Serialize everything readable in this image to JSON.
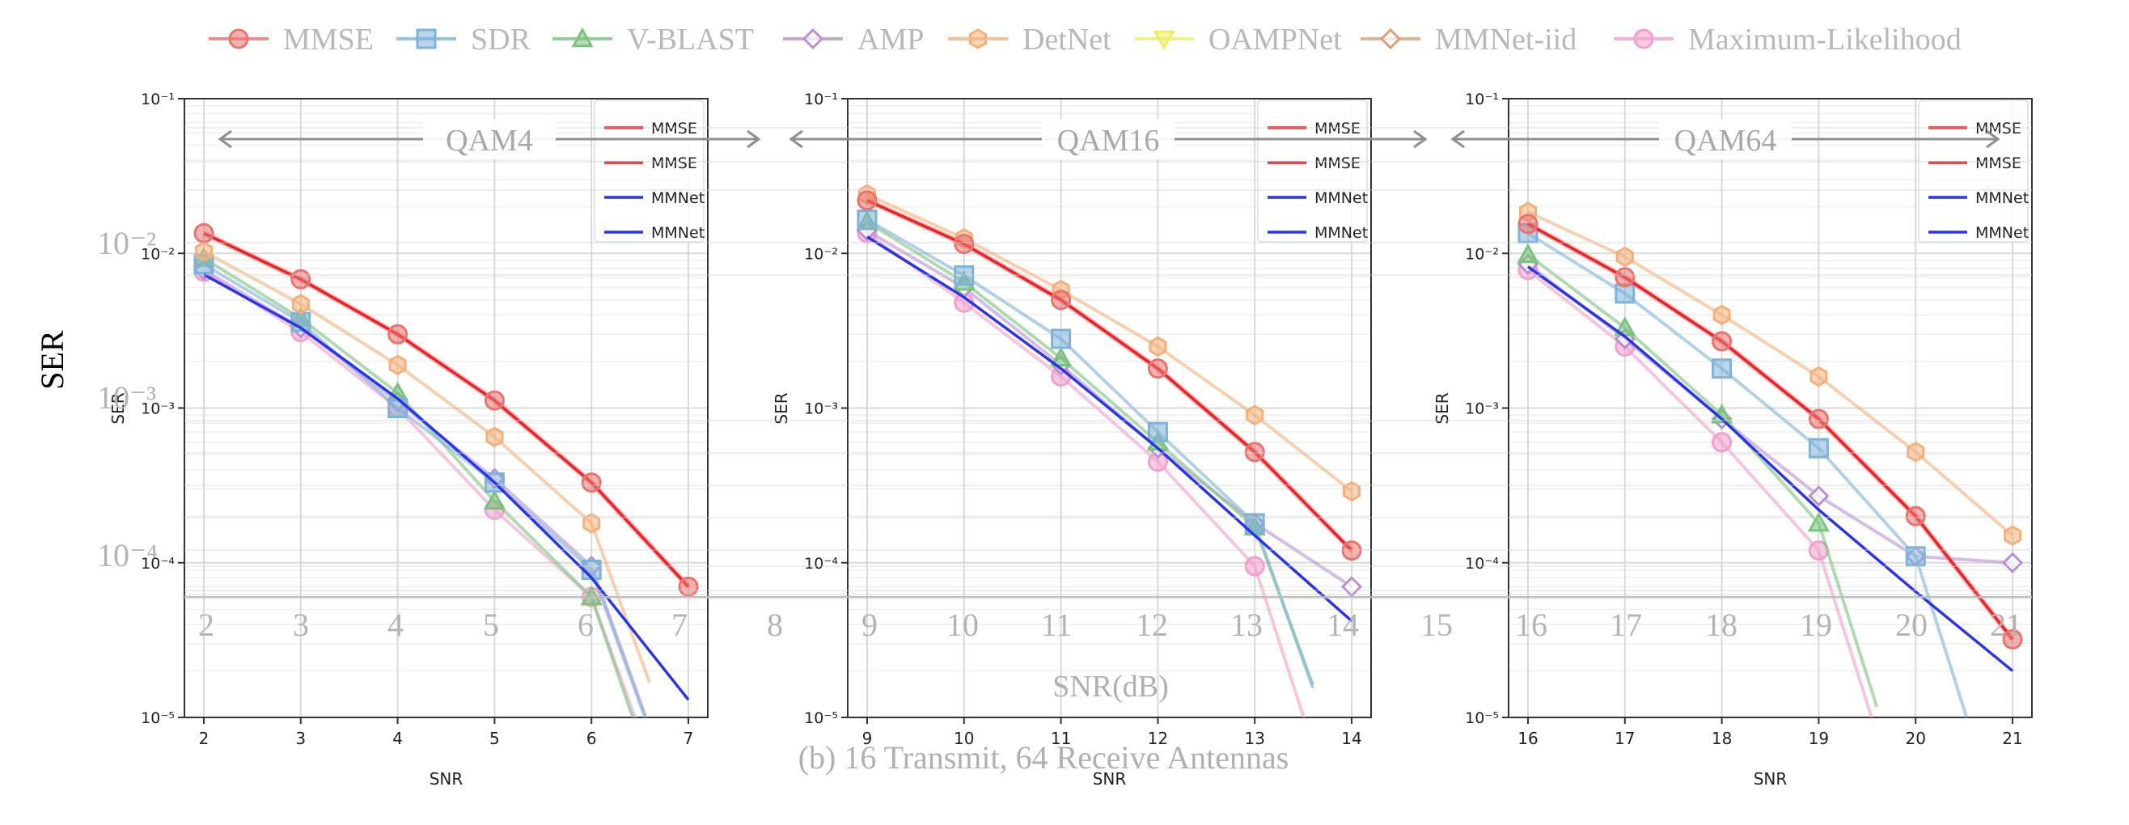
{
  "figure": {
    "top_legend": [
      {
        "label": "MMSE",
        "color": "#e8746f",
        "marker": "circle"
      },
      {
        "label": "SDR",
        "color": "#7fb2d8",
        "marker": "square"
      },
      {
        "label": "V-BLAST",
        "color": "#78c47a",
        "marker": "triangle"
      },
      {
        "label": "AMP",
        "color": "#b98fd3",
        "marker": "diamond"
      },
      {
        "label": "DetNet",
        "color": "#f4b07a",
        "marker": "hexagon"
      },
      {
        "label": "OAMPNet",
        "color": "#eeee66",
        "marker": "triangle-down"
      },
      {
        "label": "MMNet-iid",
        "color": "#d9a07e",
        "marker": "diamond"
      },
      {
        "label": "Maximum-Likelihood",
        "color": "#f29fce",
        "marker": "circle"
      }
    ],
    "big_ylabel": "SER",
    "big_xlabel": "SNR(dB)",
    "caption": "(b) 16 Transmit, 64 Receive Antennas",
    "ghost_ticks_y": [
      "10⁻²",
      "10⁻³",
      "10⁻⁴"
    ],
    "ghost_ticks_x": [
      "2",
      "3",
      "4",
      "5",
      "6",
      "7",
      "8",
      "9",
      "10",
      "11",
      "12",
      "13",
      "14",
      "15",
      "16",
      "17",
      "18",
      "19",
      "20",
      "21"
    ]
  },
  "chart_data": [
    {
      "type": "line",
      "banner": "QAM4",
      "xlabel": "SNR",
      "ylabel": "SER",
      "yscale": "log",
      "ylim": [
        1e-05,
        0.1
      ],
      "xlim": [
        1.8,
        7.2
      ],
      "x": [
        2,
        3,
        4,
        5,
        6,
        7
      ],
      "legend_inner": [
        "MMSE",
        "MMSE",
        "MMNet",
        "MMNet"
      ],
      "series": [
        {
          "name": "MMSE",
          "values": [
            0.0135,
            0.0068,
            0.003,
            0.00112,
            0.00033,
            7e-05
          ]
        },
        {
          "name": "SDR",
          "values": [
            0.0085,
            0.0036,
            0.001,
            0.00033,
            9e-05,
            null
          ]
        },
        {
          "name": "V-BLAST",
          "values": [
            0.0093,
            0.0038,
            0.00125,
            0.00025,
            6e-05,
            null
          ]
        },
        {
          "name": "AMP",
          "values": [
            0.0078,
            0.0033,
            0.0011,
            0.00035,
            9.5e-05,
            null
          ]
        },
        {
          "name": "DetNet",
          "values": [
            0.0103,
            0.0047,
            0.0019,
            0.00065,
            0.00018,
            null
          ]
        },
        {
          "name": "Maximum-Likelihood",
          "values": [
            0.0076,
            0.0031,
            0.001,
            0.00022,
            6e-05,
            null
          ]
        },
        {
          "name": "MMNet",
          "values": [
            0.0073,
            0.0033,
            0.00115,
            0.00033,
            8e-05,
            1.3e-05
          ]
        }
      ],
      "xticks": [
        "2",
        "3",
        "4",
        "5",
        "6",
        "7"
      ],
      "yticks": [
        "10⁻⁵",
        "10⁻⁴",
        "10⁻³",
        "10⁻²",
        "10⁻¹"
      ]
    },
    {
      "type": "line",
      "banner": "QAM16",
      "xlabel": "SNR",
      "ylabel": "SER",
      "yscale": "log",
      "ylim": [
        1e-05,
        0.1
      ],
      "xlim": [
        8.8,
        14.2
      ],
      "x": [
        9,
        10,
        11,
        12,
        13,
        14
      ],
      "legend_inner": [
        "MMSE",
        "MMSE",
        "MMNet",
        "MMNet"
      ],
      "series": [
        {
          "name": "MMSE",
          "values": [
            0.022,
            0.0115,
            0.005,
            0.0018,
            0.00052,
            0.00012
          ]
        },
        {
          "name": "SDR",
          "values": [
            0.0165,
            0.0072,
            0.0028,
            0.0007,
            0.00018,
            null
          ]
        },
        {
          "name": "V-BLAST",
          "values": [
            0.016,
            0.0065,
            0.0021,
            0.0006,
            0.00017,
            null
          ]
        },
        {
          "name": "AMP",
          "values": [
            0.014,
            0.006,
            0.0019,
            0.00055,
            0.00018,
            7e-05
          ]
        },
        {
          "name": "DetNet",
          "values": [
            0.024,
            0.0125,
            0.0058,
            0.0025,
            0.0009,
            0.00029
          ]
        },
        {
          "name": "Maximum-Likelihood",
          "values": [
            0.0135,
            0.0048,
            0.0016,
            0.00045,
            9.5e-05,
            null
          ]
        },
        {
          "name": "MMNet",
          "values": [
            0.0128,
            0.0052,
            0.0018,
            0.00055,
            0.00015,
            4.2e-05
          ]
        }
      ],
      "xticks": [
        "9",
        "10",
        "11",
        "12",
        "13",
        "14"
      ],
      "yticks": [
        "10⁻⁵",
        "10⁻⁴",
        "10⁻³",
        "10⁻²",
        "10⁻¹"
      ]
    },
    {
      "type": "line",
      "banner": "QAM64",
      "xlabel": "SNR",
      "ylabel": "SER",
      "yscale": "log",
      "ylim": [
        1e-05,
        0.1
      ],
      "xlim": [
        15.8,
        21.2
      ],
      "x": [
        16,
        17,
        18,
        19,
        20,
        21
      ],
      "legend_inner": [
        "MMSE",
        "MMSE",
        "MMNet",
        "MMNet"
      ],
      "series": [
        {
          "name": "MMSE",
          "values": [
            0.0155,
            0.007,
            0.0027,
            0.00085,
            0.0002,
            3.2e-05
          ]
        },
        {
          "name": "SDR",
          "values": [
            0.0135,
            0.0055,
            0.0018,
            0.00055,
            0.00011,
            null
          ]
        },
        {
          "name": "V-BLAST",
          "values": [
            0.0098,
            0.0033,
            0.0009,
            0.00018,
            null,
            null
          ]
        },
        {
          "name": "AMP",
          "values": [
            0.0085,
            0.0028,
            0.00085,
            0.00027,
            0.00011,
            0.0001
          ]
        },
        {
          "name": "DetNet",
          "values": [
            0.0185,
            0.0095,
            0.004,
            0.0016,
            0.00052,
            0.00015
          ]
        },
        {
          "name": "Maximum-Likelihood",
          "values": [
            0.0078,
            0.0025,
            0.0006,
            0.00012,
            null,
            null
          ]
        },
        {
          "name": "MMNet",
          "values": [
            0.0082,
            0.0029,
            0.00085,
            0.00022,
            6.5e-05,
            2e-05
          ]
        }
      ],
      "xticks": [
        "16",
        "17",
        "18",
        "19",
        "20",
        "21"
      ],
      "yticks": [
        "10⁻⁵",
        "10⁻⁴",
        "10⁻³",
        "10⁻²",
        "10⁻¹"
      ]
    }
  ]
}
